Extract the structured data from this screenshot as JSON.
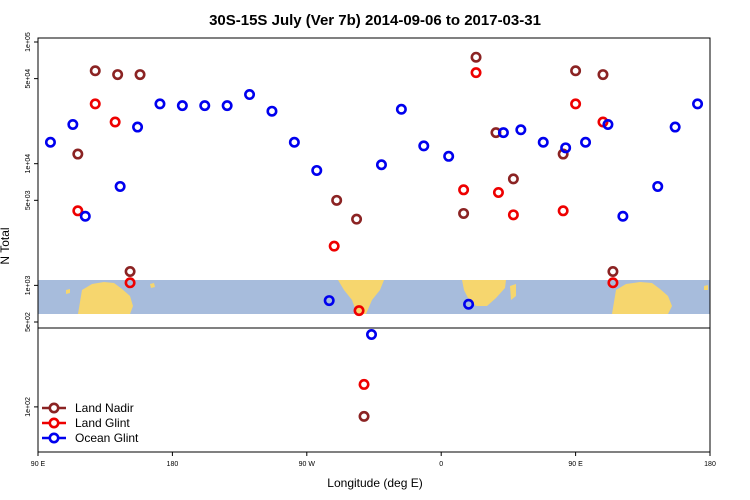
{
  "chart_data": {
    "type": "scatter",
    "title": "30S-15S July (Ver 7b)   2014-09-06 to 2017-03-31",
    "xlabel": "Longitude (deg E)",
    "ylabel": "N Total",
    "y_scale": "log",
    "xlim": [
      -90,
      180
    ],
    "x_ticks": [
      {
        "value": -90,
        "label": "90 E"
      },
      {
        "value": -36,
        "label": "180"
      },
      {
        "value": 18,
        "label": "90 W"
      },
      {
        "value": 72,
        "label": "0"
      },
      {
        "value": 126,
        "label": "90 E"
      },
      {
        "value": 180,
        "label": "180"
      }
    ],
    "panels": [
      {
        "name": "upper",
        "ylim": [
          500,
          100000
        ],
        "y_ticks": [
          {
            "value": 1000,
            "label": "1e+03"
          },
          {
            "value": 5000,
            "label": "5e+03"
          },
          {
            "value": 10000,
            "label": "1e+04"
          },
          {
            "value": 50000,
            "label": "5e+04"
          },
          {
            "value": 100000,
            "label": "1e+05"
          }
        ]
      },
      {
        "name": "lower",
        "ylim": [
          50,
          500
        ],
        "y_ticks": [
          {
            "value": 100,
            "label": "1e+02"
          },
          {
            "value": 500,
            "label": "5e+02"
          }
        ]
      }
    ],
    "legend_position": "bottom-left",
    "series": [
      {
        "name": "Land Nadir",
        "color": "#8b2323",
        "points": [
          {
            "x": -74,
            "y": 12000
          },
          {
            "x": -67,
            "y": 58000
          },
          {
            "x": -58,
            "y": 54000
          },
          {
            "x": -53,
            "y": 1300
          },
          {
            "x": -49,
            "y": 54000
          },
          {
            "x": 30,
            "y": 5000
          },
          {
            "x": 38,
            "y": 3500
          },
          {
            "x": 41,
            "y": 82
          },
          {
            "x": 81,
            "y": 3900
          },
          {
            "x": 86,
            "y": 75000
          },
          {
            "x": 94,
            "y": 18000
          },
          {
            "x": 101,
            "y": 7500
          },
          {
            "x": 121,
            "y": 12000
          },
          {
            "x": 126,
            "y": 58000
          },
          {
            "x": 137,
            "y": 54000
          },
          {
            "x": 141,
            "y": 1300
          }
        ]
      },
      {
        "name": "Land Glint",
        "color": "#ee0000",
        "points": [
          {
            "x": -74,
            "y": 4100
          },
          {
            "x": -67,
            "y": 31000
          },
          {
            "x": -59,
            "y": 22000
          },
          {
            "x": -53,
            "y": 1050
          },
          {
            "x": 29,
            "y": 2100
          },
          {
            "x": 39,
            "y": 620
          },
          {
            "x": 41,
            "y": 160
          },
          {
            "x": 81,
            "y": 6100
          },
          {
            "x": 86,
            "y": 56000
          },
          {
            "x": 95,
            "y": 5800
          },
          {
            "x": 101,
            "y": 3800
          },
          {
            "x": 121,
            "y": 4100
          },
          {
            "x": 126,
            "y": 31000
          },
          {
            "x": 137,
            "y": 22000
          },
          {
            "x": 141,
            "y": 1050
          }
        ]
      },
      {
        "name": "Ocean Glint",
        "color": "#0000ee",
        "points": [
          {
            "x": -85,
            "y": 15000
          },
          {
            "x": -76,
            "y": 21000
          },
          {
            "x": -71,
            "y": 3700
          },
          {
            "x": -57,
            "y": 6500
          },
          {
            "x": -50,
            "y": 20000
          },
          {
            "x": -41,
            "y": 31000
          },
          {
            "x": -32,
            "y": 30000
          },
          {
            "x": -23,
            "y": 30000
          },
          {
            "x": -14,
            "y": 30000
          },
          {
            "x": -5,
            "y": 37000
          },
          {
            "x": 4,
            "y": 27000
          },
          {
            "x": 13,
            "y": 15000
          },
          {
            "x": 22,
            "y": 8800
          },
          {
            "x": 27,
            "y": 750
          },
          {
            "x": 44,
            "y": 455
          },
          {
            "x": 48,
            "y": 9800
          },
          {
            "x": 56,
            "y": 28000
          },
          {
            "x": 65,
            "y": 14000
          },
          {
            "x": 75,
            "y": 11500
          },
          {
            "x": 83,
            "y": 700
          },
          {
            "x": 97,
            "y": 18000
          },
          {
            "x": 104,
            "y": 19000
          },
          {
            "x": 113,
            "y": 15000
          },
          {
            "x": 122,
            "y": 13500
          },
          {
            "x": 130,
            "y": 15000
          },
          {
            "x": 139,
            "y": 21000
          },
          {
            "x": 145,
            "y": 3700
          },
          {
            "x": 159,
            "y": 6500
          },
          {
            "x": 166,
            "y": 20000
          },
          {
            "x": 175,
            "y": 31000
          }
        ]
      }
    ]
  },
  "map_colors": {
    "ocean": "#a7bcdc",
    "land": "#f6d66e"
  }
}
